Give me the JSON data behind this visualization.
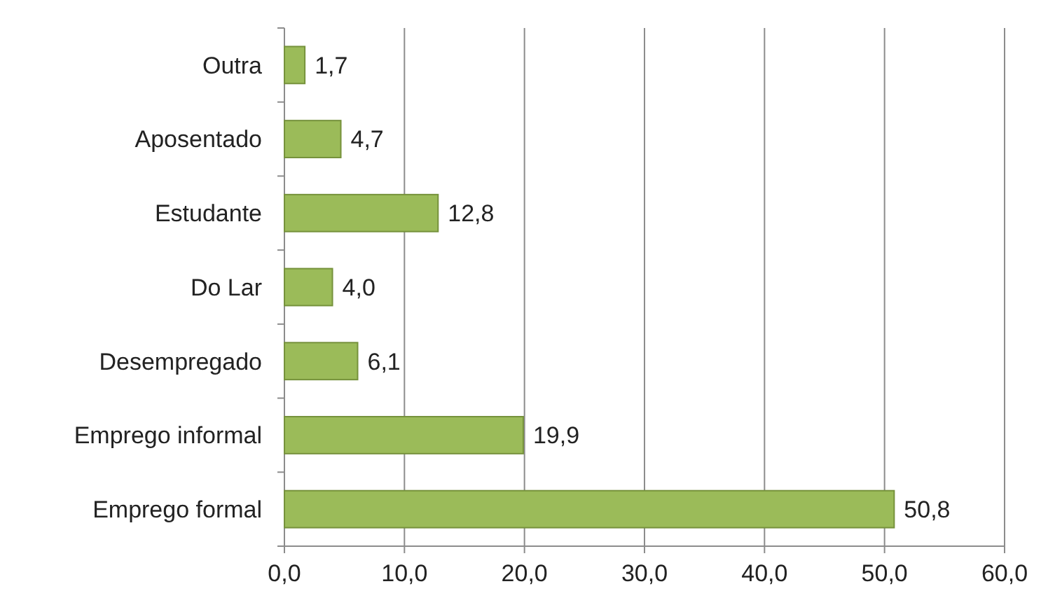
{
  "chart_data": {
    "type": "bar",
    "orientation": "horizontal",
    "categories": [
      "Outra",
      "Aposentado",
      "Estudante",
      "Do Lar",
      "Desempregado",
      "Emprego informal",
      "Emprego formal"
    ],
    "values": [
      1.7,
      4.7,
      12.8,
      4.0,
      6.1,
      19.9,
      50.8
    ],
    "color": "#9bbb59",
    "value_labels": [
      "1,7",
      "4,7",
      "12,8",
      "4,0",
      "6,1",
      "19,9",
      "50,8"
    ],
    "xlim": [
      0,
      60
    ],
    "xticks": [
      {
        "value": 0,
        "label": "0,0"
      },
      {
        "value": 10,
        "label": "10,0"
      },
      {
        "value": 20,
        "label": "20,0"
      },
      {
        "value": 30,
        "label": "30,0"
      },
      {
        "value": 40,
        "label": "40,0"
      },
      {
        "value": 50,
        "label": "50,0"
      },
      {
        "value": 60,
        "label": "60,0"
      }
    ],
    "grid": "x"
  }
}
